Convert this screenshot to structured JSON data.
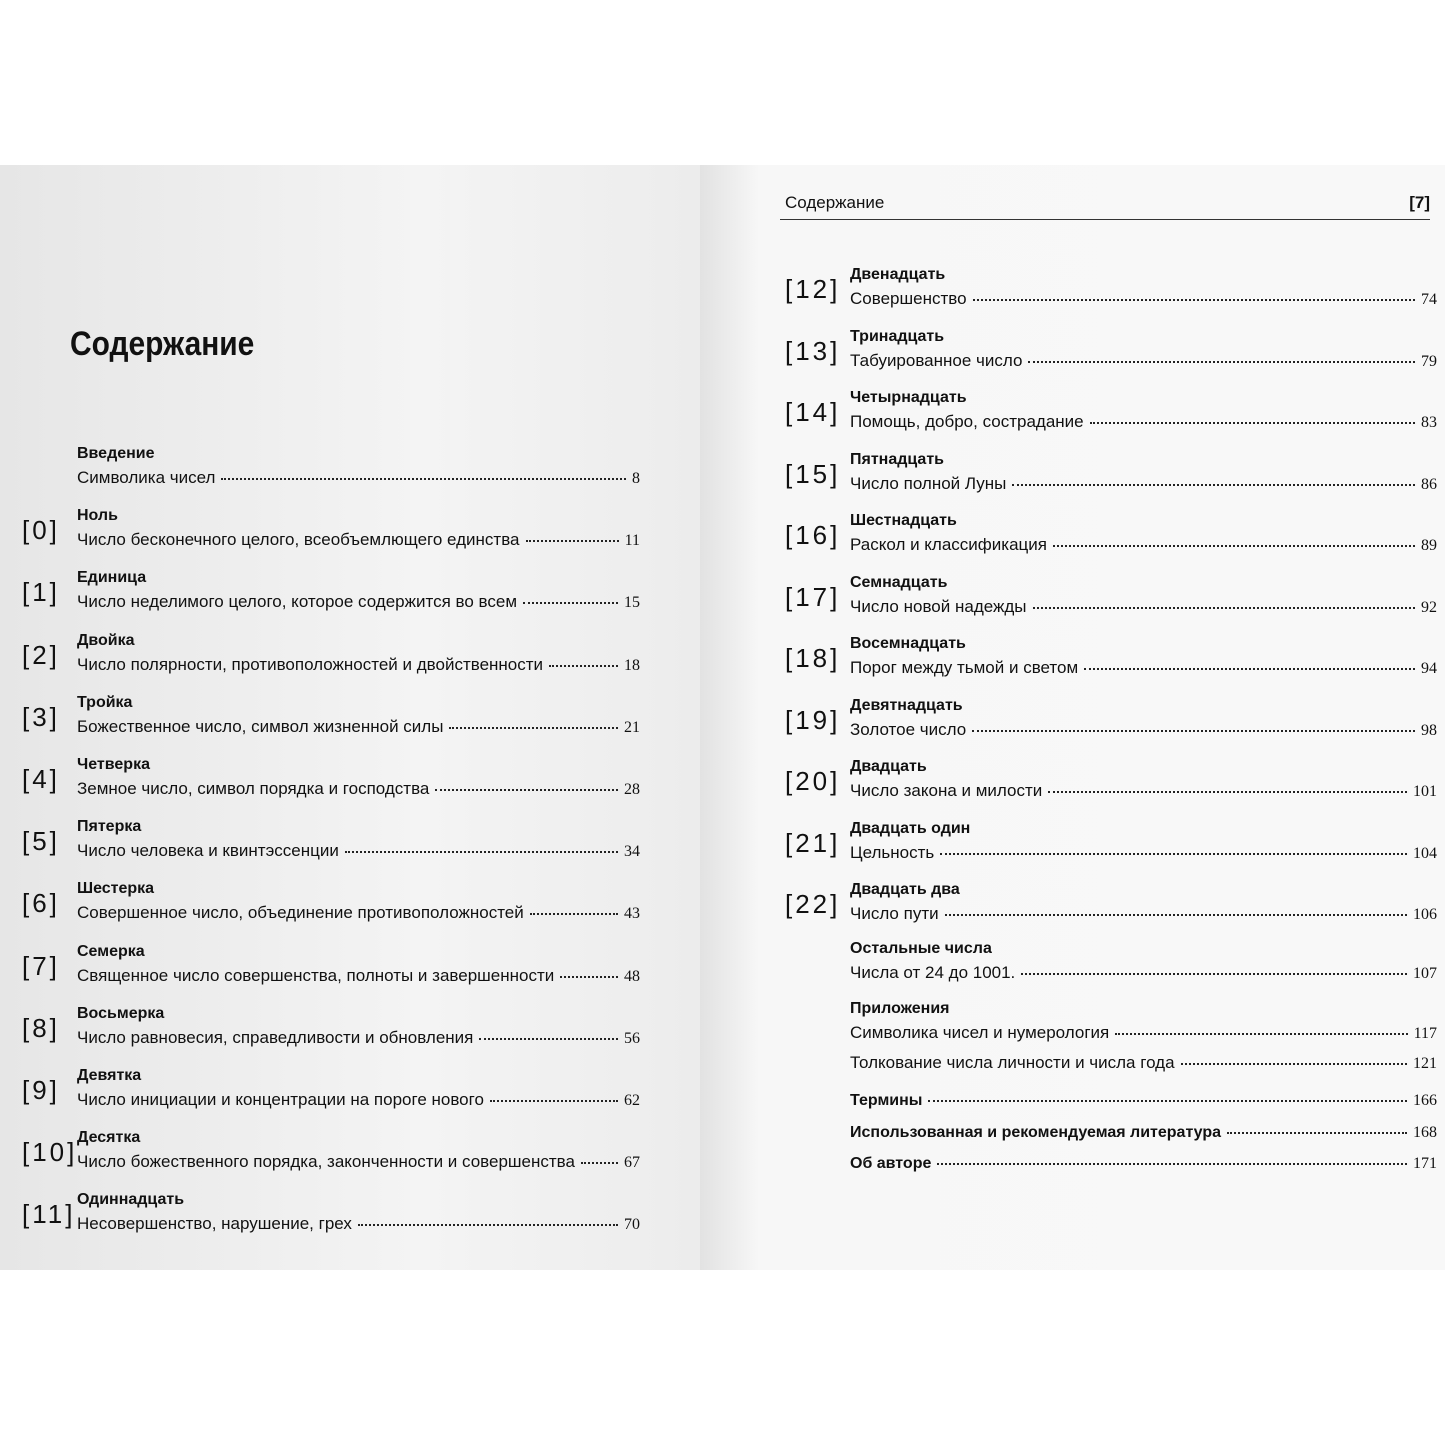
{
  "left_page": {
    "title": "Содержание",
    "entries": [
      {
        "heading": "Введение",
        "items": [
          {
            "text": "Символика чисел",
            "page": 8
          }
        ]
      },
      {
        "marker": "[0]",
        "heading": "Ноль",
        "items": [
          {
            "text": "Число бесконечного целого, всеобъемлющего единства",
            "page": 11
          }
        ]
      },
      {
        "marker": "[1]",
        "heading": "Единица",
        "items": [
          {
            "text": "Число неделимого целого, которое содержится во всем",
            "page": 15
          }
        ]
      },
      {
        "marker": "[2]",
        "heading": "Двойка",
        "items": [
          {
            "text": "Число полярности, противоположностей и двойственности",
            "page": 18
          }
        ]
      },
      {
        "marker": "[3]",
        "heading": "Тройка",
        "items": [
          {
            "text": "Божественное число, символ жизненной силы",
            "page": 21
          }
        ]
      },
      {
        "marker": "[4]",
        "heading": "Четверка",
        "items": [
          {
            "text": "Земное число, символ порядка и господства",
            "page": 28
          }
        ]
      },
      {
        "marker": "[5]",
        "heading": "Пятерка",
        "items": [
          {
            "text": "Число человека и квинтэссенции",
            "page": 34
          }
        ]
      },
      {
        "marker": "[6]",
        "heading": "Шестерка",
        "items": [
          {
            "text": "Совершенное число, объединение противоположностей",
            "page": 43
          }
        ]
      },
      {
        "marker": "[7]",
        "heading": "Семерка",
        "items": [
          {
            "text": "Священное число совершенства, полноты и завершенности",
            "page": 48
          }
        ]
      },
      {
        "marker": "[8]",
        "heading": "Восьмерка",
        "items": [
          {
            "text": "Число равновесия, справедливости и обновления",
            "page": 56
          }
        ]
      },
      {
        "marker": "[9]",
        "heading": "Девятка",
        "items": [
          {
            "text": "Число инициации и концентрации на пороге нового",
            "page": 62
          }
        ]
      },
      {
        "marker": "[10]",
        "heading": "Десятка",
        "items": [
          {
            "text": "Число божественного порядка, законченности и совершенства",
            "page": 67
          }
        ]
      },
      {
        "marker": "[11]",
        "heading": "Одиннадцать",
        "items": [
          {
            "text": "Несовершенство, нарушение, грех",
            "page": 70
          }
        ]
      }
    ]
  },
  "right_page": {
    "header": "Содержание",
    "page_number": "[7]",
    "entries": [
      {
        "marker": "[12]",
        "heading": "Двенадцать",
        "items": [
          {
            "text": "Совершенство",
            "page": 74
          }
        ]
      },
      {
        "marker": "[13]",
        "heading": "Тринадцать",
        "items": [
          {
            "text": "Табуированное число",
            "page": 79
          }
        ]
      },
      {
        "marker": "[14]",
        "heading": "Четырнадцать",
        "items": [
          {
            "text": "Помощь, добро, сострадание",
            "page": 83
          }
        ]
      },
      {
        "marker": "[15]",
        "heading": "Пятнадцать",
        "items": [
          {
            "text": "Число полной Луны",
            "page": 86
          }
        ]
      },
      {
        "marker": "[16]",
        "heading": "Шестнадцать",
        "items": [
          {
            "text": "Раскол и классификация",
            "page": 89
          }
        ]
      },
      {
        "marker": "[17]",
        "heading": "Семнадцать",
        "items": [
          {
            "text": "Число новой надежды",
            "page": 92
          }
        ]
      },
      {
        "marker": "[18]",
        "heading": "Восемнадцать",
        "items": [
          {
            "text": "Порог между тьмой и светом",
            "page": 94
          }
        ]
      },
      {
        "marker": "[19]",
        "heading": "Девятнадцать",
        "items": [
          {
            "text": "Золотое число",
            "page": 98
          }
        ]
      },
      {
        "marker": "[20]",
        "heading": "Двадцать",
        "items": [
          {
            "text": "Число закона и милости",
            "page": 101
          }
        ]
      },
      {
        "marker": "[21]",
        "heading": "Двадцать один",
        "items": [
          {
            "text": "Цельность",
            "page": 104
          }
        ]
      },
      {
        "marker": "[22]",
        "heading": "Двадцать два",
        "items": [
          {
            "text": "Число пути",
            "page": 106
          }
        ]
      },
      {
        "heading": "Остальные числа",
        "items": [
          {
            "text": "Числа от 24 до 1001.",
            "page": 107
          }
        ]
      },
      {
        "heading": "Приложения",
        "items": [
          {
            "text": "Символика чисел и нумерология",
            "page": 117
          },
          {
            "text": "Толкование числа личности и числа года",
            "page": 121
          }
        ]
      },
      {
        "heading": "Термины",
        "page": 166
      },
      {
        "heading": "Использованная и рекомендуемая литература",
        "page": 168
      },
      {
        "heading": "Об авторе",
        "page": 171
      }
    ]
  }
}
